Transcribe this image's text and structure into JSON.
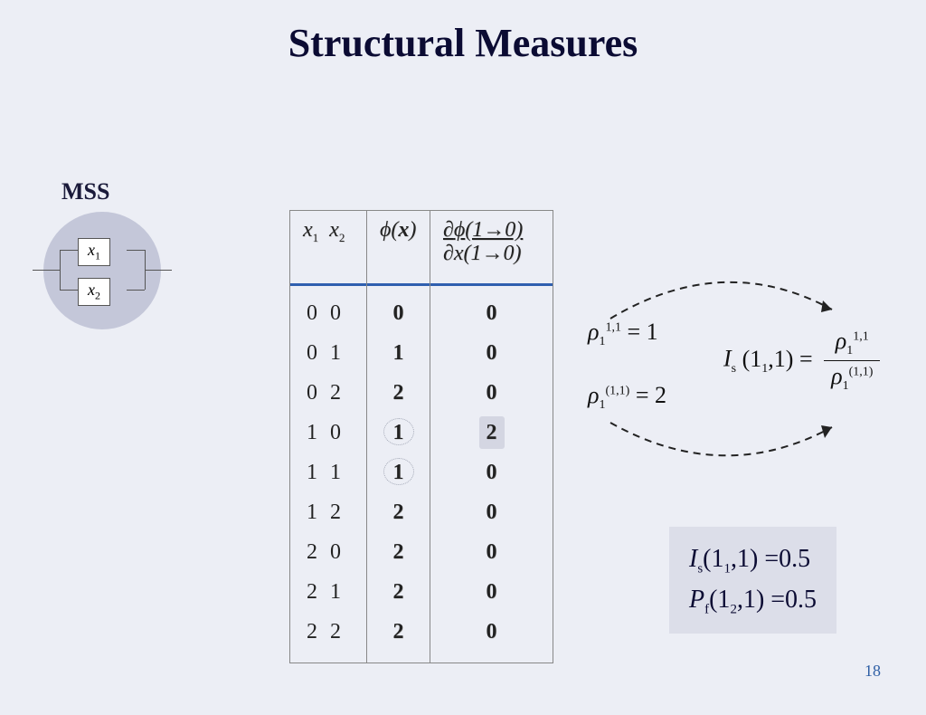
{
  "title": "Structural Measures",
  "mss": {
    "label": "MSS",
    "nodes": [
      "x",
      "x"
    ],
    "node_subs": [
      "1",
      "2"
    ]
  },
  "table": {
    "col1_header": "x₁  x₂",
    "col2_header": "ϕ(x)",
    "col3_header_top": "∂ϕ(1→0)",
    "col3_header_bot": "∂x(1→0)",
    "rows": [
      {
        "x": "0  0",
        "phi": "0",
        "d": "0"
      },
      {
        "x": "0  1",
        "phi": "1",
        "d": "0"
      },
      {
        "x": "0  2",
        "phi": "2",
        "d": "0"
      },
      {
        "x": "1  0",
        "phi": "1",
        "d": "2",
        "phi_circled": true,
        "d_highlight": true
      },
      {
        "x": "1  1",
        "phi": "1",
        "d": "0",
        "phi_circled": true
      },
      {
        "x": "1  2",
        "phi": "2",
        "d": "0"
      },
      {
        "x": "2  0",
        "phi": "2",
        "d": "0"
      },
      {
        "x": "2  1",
        "phi": "2",
        "d": "0"
      },
      {
        "x": "2  2",
        "phi": "2",
        "d": "0"
      }
    ]
  },
  "equations": {
    "rho_top": "ρ",
    "rho_top_sup": "1,1",
    "rho_top_sub": "1",
    "rho_top_val": " = 1",
    "rho_bot": "ρ",
    "rho_bot_sup": "(1,1)",
    "rho_bot_sub": "1",
    "rho_bot_val": " = 2",
    "Is_label": "I",
    "Is_sub": "s",
    "Is_arg": " (1₁,1) = ",
    "frac_num": "ρ₁",
    "frac_num_sup": "1,1",
    "frac_den": "ρ₁",
    "frac_den_sup": "(1,1)"
  },
  "results": {
    "line1_sym": "I",
    "line1_sub": "s",
    "line1_rest": "(1₁,1) =0.5",
    "line2_sym": "P",
    "line2_sub": "f",
    "line2_rest": "(1₂,1) =0.5"
  },
  "page_number": "18"
}
